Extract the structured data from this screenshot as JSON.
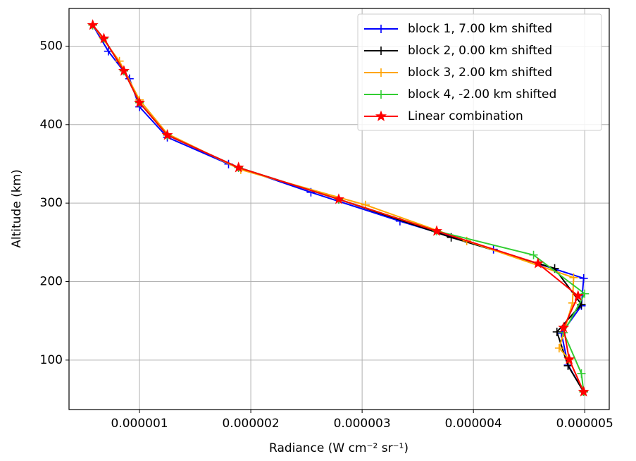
{
  "chart_data": {
    "type": "line",
    "xlabel": "Radiance (W cm⁻² sr⁻¹)",
    "ylabel": "Altitude (km)",
    "xlim": [
      3.67e-07,
      5.22e-06
    ],
    "ylim": [
      37,
      548
    ],
    "xticks": [
      1e-06,
      2e-06,
      3e-06,
      4e-06,
      5e-06
    ],
    "yticks": [
      100,
      200,
      300,
      400,
      500
    ],
    "grid": true,
    "legend": "upper right",
    "series": [
      {
        "name": "block 1, 7.00 km shifted",
        "color": "#0000ff",
        "marker": "plus",
        "x": [
          5.8e-07,
          7.2e-07,
          9.1e-07,
          1e-06,
          1.25e-06,
          1.8e-06,
          2.54e-06,
          3.34e-06,
          4.18e-06,
          4.99e-06,
          4.97e-06,
          4.79e-06,
          4.85e-06,
          4.99e-06
        ],
        "values": [
          526.8,
          493.5,
          458.5,
          422.6,
          383.9,
          349.8,
          313.8,
          277.0,
          241.1,
          204.2,
          169.2,
          134.1,
          93.7,
          59.6
        ]
      },
      {
        "name": "block 2, 0.00 km shifted",
        "color": "#000000",
        "marker": "plus",
        "x": [
          5.8e-07,
          6.8e-07,
          8.6e-07,
          1e-06,
          1.25e-06,
          1.89e-06,
          2.79e-06,
          3.8e-06,
          4.73e-06,
          4.97e-06,
          4.75e-06,
          4.85e-06,
          4.99e-06
        ],
        "values": [
          526.8,
          509.7,
          468.4,
          428.0,
          386.6,
          345.3,
          304.9,
          256.3,
          216.8,
          171.0,
          135.9,
          92.8,
          59.6
        ]
      },
      {
        "name": "block 3, 2.00 km shifted",
        "color": "#ffa500",
        "marker": "plus",
        "x": [
          5.8e-07,
          8.2e-07,
          1e-06,
          1.25e-06,
          1.91e-06,
          3.03e-06,
          3.94e-06,
          4.9e-06,
          4.89e-06,
          4.77e-06,
          4.86e-06,
          4.99e-06
        ],
        "values": [
          526.8,
          480.9,
          431.5,
          388.4,
          342.6,
          297.7,
          251.8,
          205.1,
          172.8,
          115.3,
          100.9,
          59.6
        ]
      },
      {
        "name": "block 4, -2.00 km shifted",
        "color": "#32cd32",
        "marker": "plus",
        "x": [
          5.8e-07,
          6.8e-07,
          8.6e-07,
          1e-06,
          1.25e-06,
          1.89e-06,
          2.79e-06,
          3.67e-06,
          4.54e-06,
          5e-06,
          4.81e-06,
          4.97e-06,
          4.99e-06
        ],
        "values": [
          526.8,
          509.7,
          468.4,
          428.0,
          386.6,
          345.3,
          304.9,
          264.4,
          233.9,
          184.5,
          135.0,
          82.9,
          59.6
        ]
      },
      {
        "name": "Linear combination",
        "color": "#ff0000",
        "marker": "star",
        "x": [
          5.8e-07,
          6.8e-07,
          8.6e-07,
          1e-06,
          1.25e-06,
          1.89e-06,
          2.79e-06,
          3.67e-06,
          4.58e-06,
          4.94e-06,
          4.81e-06,
          4.86e-06,
          4.99e-06
        ],
        "values": [
          526.8,
          509.7,
          468.4,
          428.0,
          386.6,
          345.3,
          304.9,
          264.4,
          223.1,
          181.8,
          141.3,
          100.9,
          59.6
        ]
      }
    ]
  }
}
